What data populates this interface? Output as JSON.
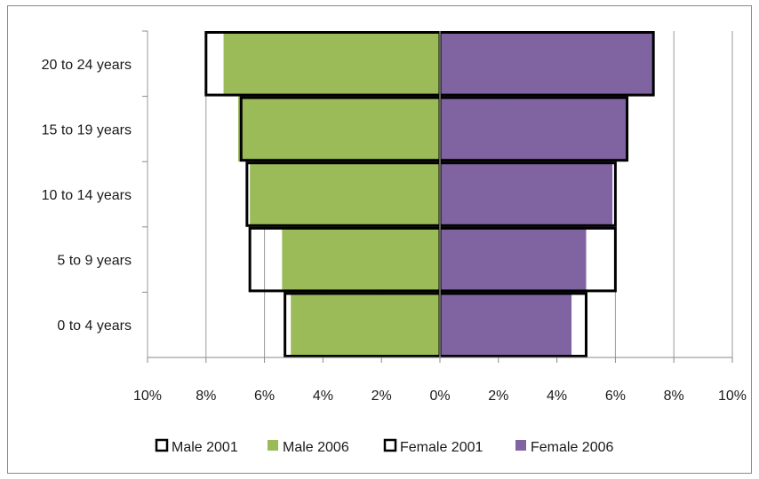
{
  "chart_data": {
    "type": "bar",
    "orientation": "horizontal",
    "layout": "population-pyramid",
    "categories": [
      "0 to 4 years",
      "5 to 9 years",
      "10 to 14 years",
      "15 to 19 years",
      "20 to 24 years"
    ],
    "series": [
      {
        "name": "Male 2001",
        "side": "left",
        "style": "outline",
        "values": [
          5.3,
          6.5,
          6.6,
          6.8,
          8.0
        ]
      },
      {
        "name": "Male 2006",
        "side": "left",
        "style": "filled",
        "color": "#9bbb59",
        "values": [
          5.1,
          5.4,
          6.5,
          6.9,
          7.4
        ]
      },
      {
        "name": "Female 2001",
        "side": "right",
        "style": "outline",
        "values": [
          5.0,
          6.0,
          6.0,
          6.4,
          7.3
        ]
      },
      {
        "name": "Female 2006",
        "side": "right",
        "style": "filled",
        "color": "#8064a2",
        "values": [
          4.5,
          5.0,
          5.9,
          6.4,
          7.3
        ]
      }
    ],
    "xlim": [
      -10,
      10
    ],
    "x_ticks": [
      "10%",
      "8%",
      "6%",
      "4%",
      "2%",
      "0%",
      "2%",
      "4%",
      "6%",
      "8%",
      "10%"
    ],
    "grid": "vertical",
    "legend": "bottom",
    "title": "",
    "xlabel": "",
    "ylabel": ""
  }
}
